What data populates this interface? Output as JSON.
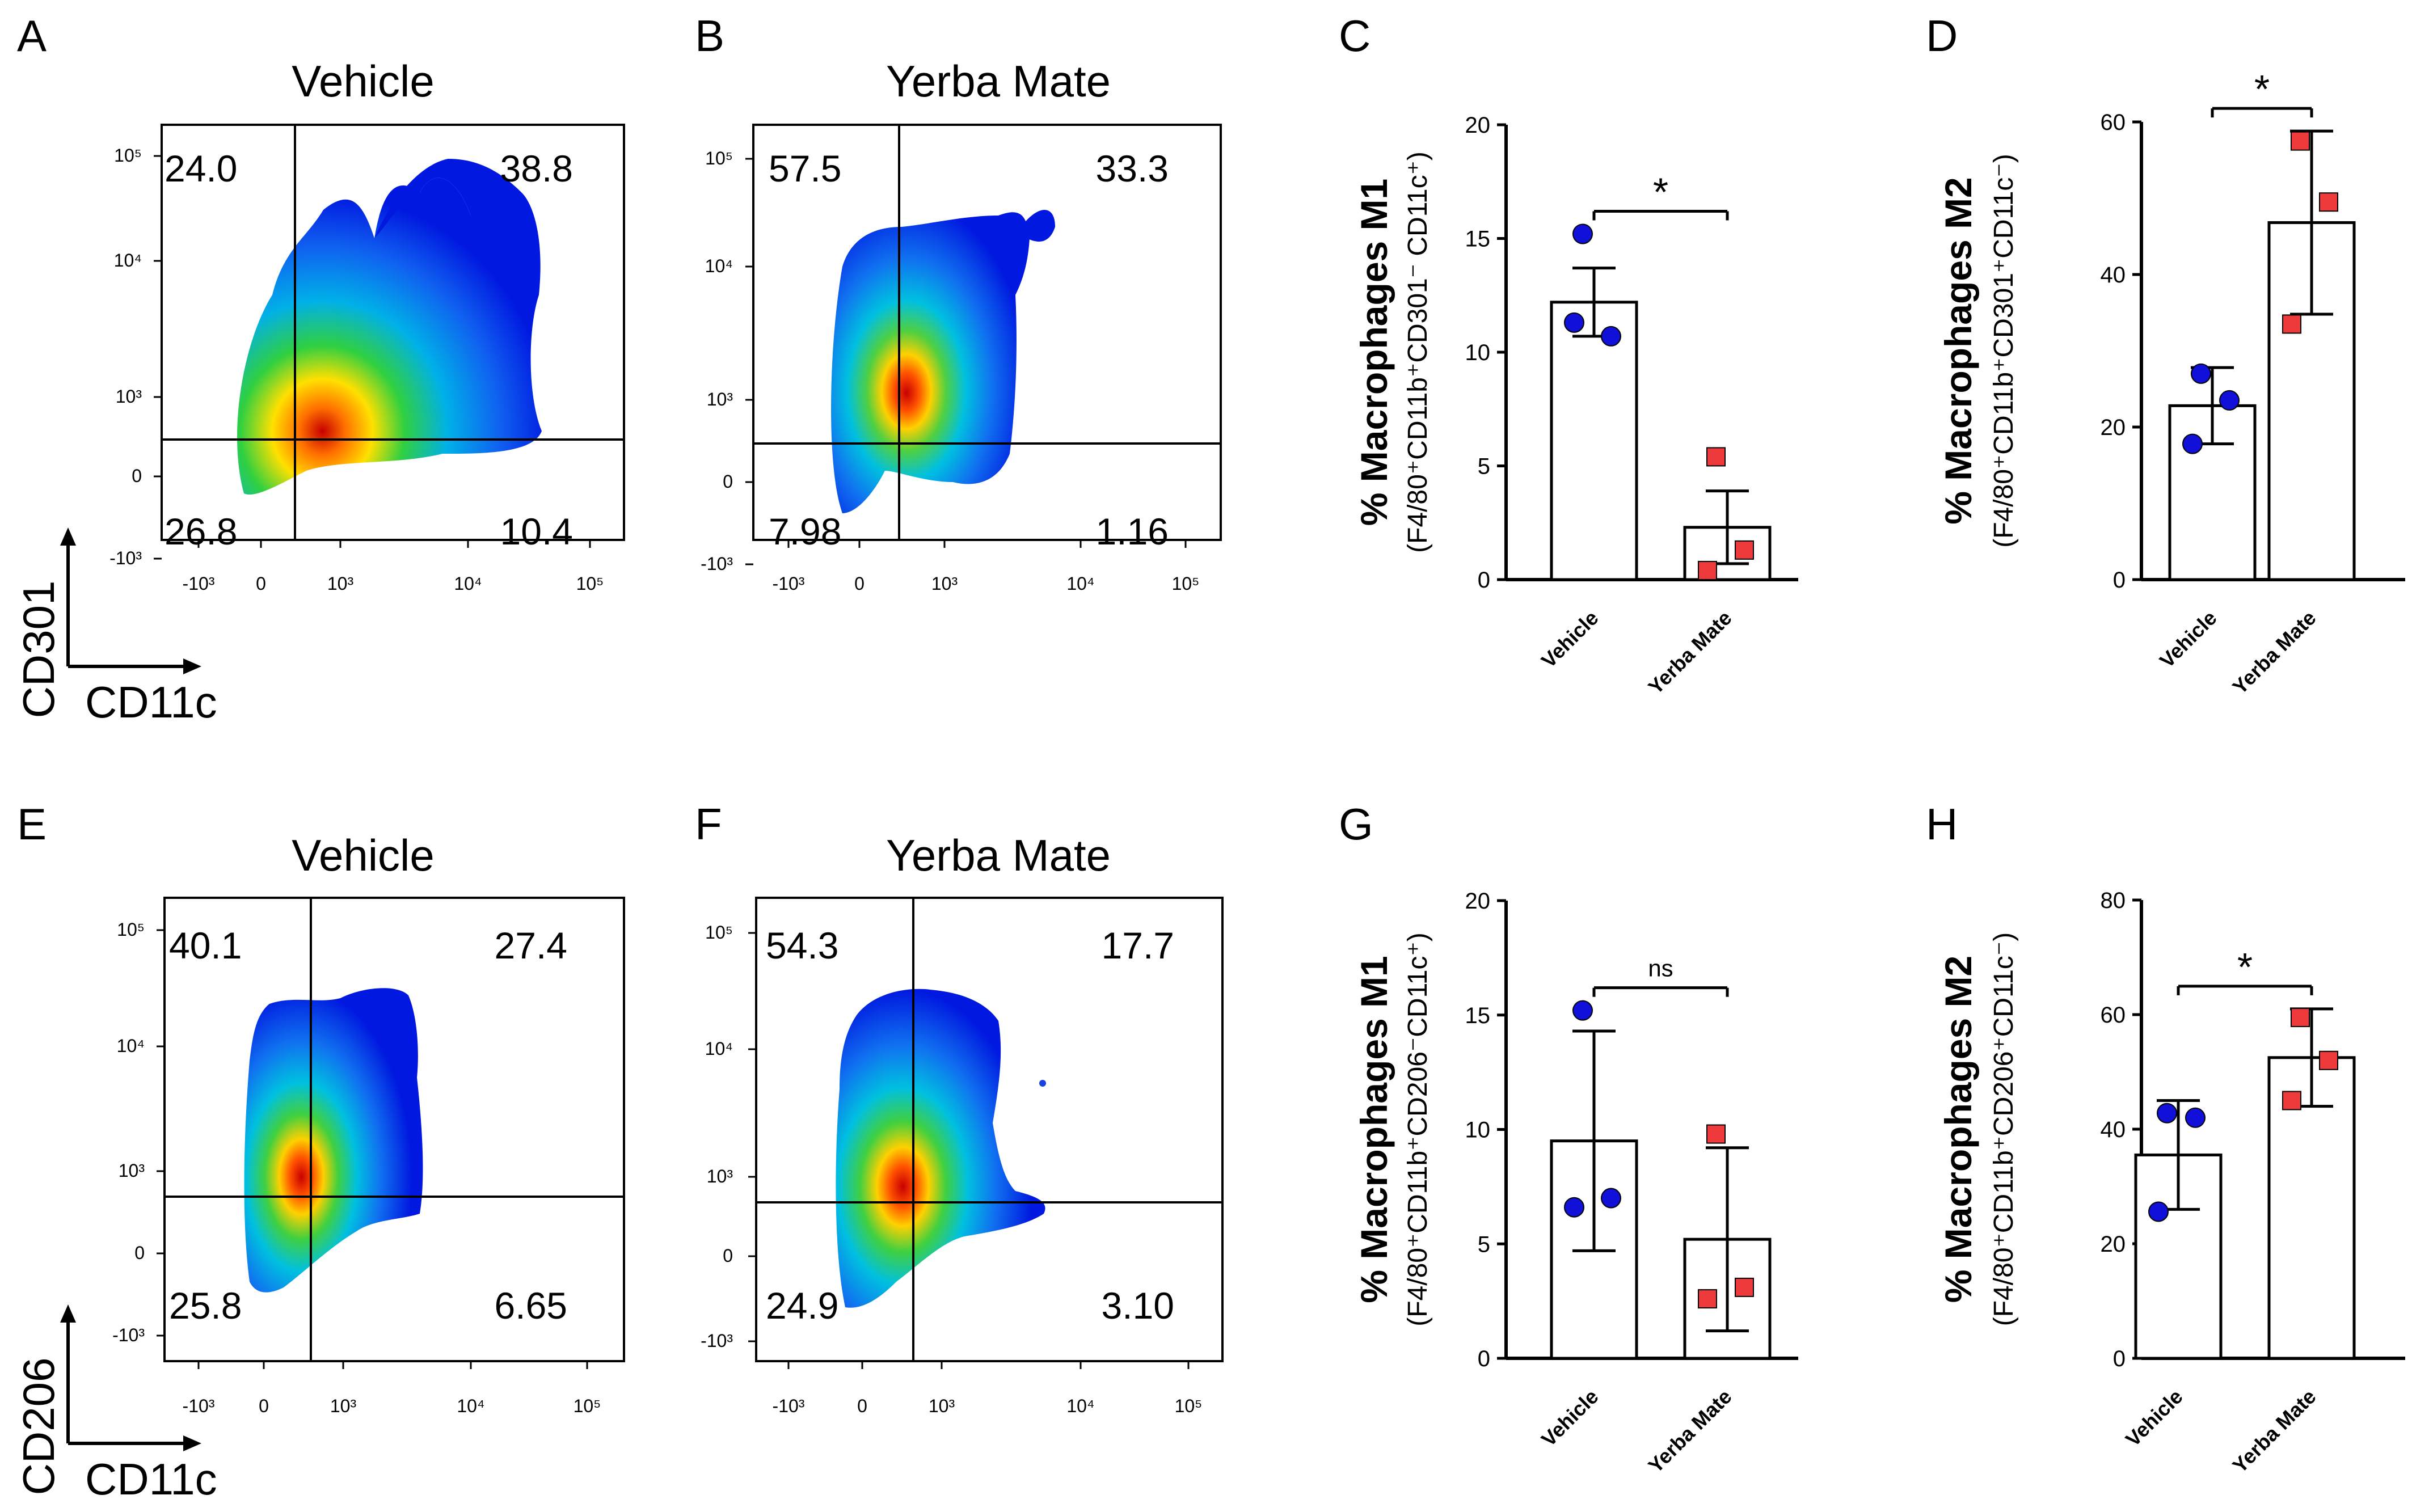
{
  "chart_data": [
    {
      "panel": "A",
      "type": "scatter",
      "title": "Vehicle",
      "xlabel": "CD11c",
      "ylabel": "CD301",
      "quadrants": {
        "top_left": "24.0",
        "top_right": "38.8",
        "bottom_left": "26.8",
        "bottom_right": "10.4"
      },
      "x_ticks": [
        "-10³",
        "0",
        "10³",
        "10⁴",
        "10⁵"
      ],
      "y_ticks": [
        "10⁵",
        "10⁴",
        "10³",
        "0",
        "-10³"
      ]
    },
    {
      "panel": "B",
      "type": "scatter",
      "title": "Yerba Mate",
      "quadrants": {
        "top_left": "57.5",
        "top_right": "33.3",
        "bottom_left": "7.98",
        "bottom_right": "1.16"
      },
      "x_ticks": [
        "-10³",
        "0",
        "10³",
        "10⁴",
        "10⁵"
      ],
      "y_ticks": [
        "10⁵",
        "10⁴",
        "10³",
        "0",
        "-10³"
      ]
    },
    {
      "panel": "C",
      "type": "bar",
      "ylabel_main": "% Macrophages M1",
      "ylabel_sub": "(F4/80⁺CD11b⁺CD301⁻ CD11c⁺)",
      "categories": [
        "Vehicle",
        "Yerba Mate"
      ],
      "ylim": [
        0,
        20
      ],
      "yticks": [
        0,
        5,
        10,
        15,
        20
      ],
      "means": [
        12.2,
        2.3
      ],
      "errors": [
        1.5,
        1.6
      ],
      "points": [
        [
          15.2,
          10.7,
          11.3
        ],
        [
          5.4,
          1.3,
          0.4
        ]
      ],
      "significance": "*"
    },
    {
      "panel": "D",
      "type": "bar",
      "ylabel_main": "% Macrophages M2",
      "ylabel_sub": "(F4/80⁺CD11b⁺CD301⁺CD11c⁻)",
      "categories": [
        "Vehicle",
        "Yerba Mate"
      ],
      "ylim": [
        0,
        60
      ],
      "yticks": [
        0,
        20,
        40,
        60
      ],
      "means": [
        22.8,
        46.8
      ],
      "errors": [
        5.0,
        12.0
      ],
      "points": [
        [
          27.0,
          23.5,
          17.8
        ],
        [
          57.5,
          49.5,
          33.5
        ]
      ],
      "significance": "*"
    },
    {
      "panel": "E",
      "type": "scatter",
      "title": "Vehicle",
      "xlabel": "CD11c",
      "ylabel": "CD206",
      "quadrants": {
        "top_left": "40.1",
        "top_right": "27.4",
        "bottom_left": "25.8",
        "bottom_right": "6.65"
      },
      "x_ticks": [
        "-10³",
        "0",
        "10³",
        "10⁴",
        "10⁵"
      ],
      "y_ticks": [
        "10⁵",
        "10⁴",
        "10³",
        "0",
        "-10³"
      ]
    },
    {
      "panel": "F",
      "type": "scatter",
      "title": "Yerba Mate",
      "quadrants": {
        "top_left": "54.3",
        "top_right": "17.7",
        "bottom_left": "24.9",
        "bottom_right": "3.10"
      },
      "x_ticks": [
        "-10³",
        "0",
        "10³",
        "10⁴",
        "10⁵"
      ],
      "y_ticks": [
        "10⁵",
        "10⁴",
        "10³",
        "0",
        "-10³"
      ]
    },
    {
      "panel": "G",
      "type": "bar",
      "ylabel_main": "% Macrophages M1",
      "ylabel_sub": "(F4/80⁺CD11b⁺CD206⁻CD11c⁺)",
      "categories": [
        "Vehicle",
        "Yerba Mate"
      ],
      "ylim": [
        0,
        20
      ],
      "yticks": [
        0,
        5,
        10,
        15,
        20
      ],
      "means": [
        9.5,
        5.2
      ],
      "errors": [
        4.8,
        4.0
      ],
      "points": [
        [
          15.2,
          7.0,
          6.6
        ],
        [
          9.8,
          3.1,
          2.6
        ]
      ],
      "significance": "ns"
    },
    {
      "panel": "H",
      "type": "bar",
      "ylabel_main": "% Macrophages M2",
      "ylabel_sub": "(F4/80⁺CD11b⁺CD206⁺CD11c⁻)",
      "categories": [
        "Vehicle",
        "Yerba Mate"
      ],
      "ylim": [
        0,
        80
      ],
      "yticks": [
        0,
        20,
        40,
        60,
        80
      ],
      "means": [
        35.5,
        52.5
      ],
      "errors": [
        9.5,
        8.5
      ],
      "points": [
        [
          42.8,
          42.0,
          25.6
        ],
        [
          59.5,
          52.0,
          45.0
        ]
      ],
      "significance": "*"
    }
  ],
  "colors": {
    "vehicle": "#1010d8",
    "yerba_mate": "#ee3a3a"
  }
}
